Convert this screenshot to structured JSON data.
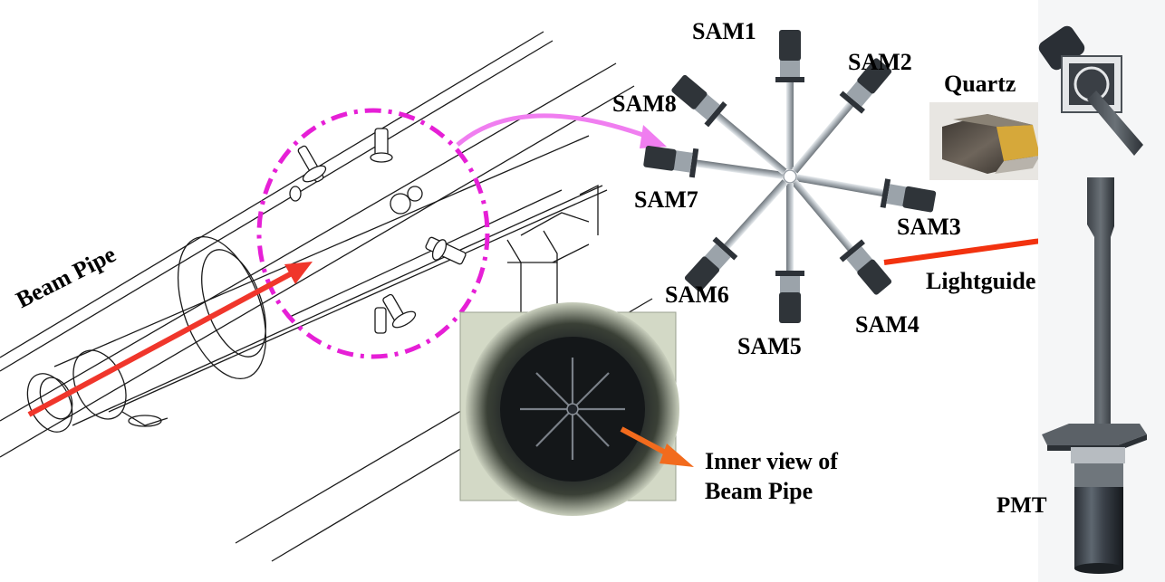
{
  "labels": {
    "beam_pipe": "Beam Pipe",
    "inner_view_line1": "Inner view of",
    "inner_view_line2": "Beam Pipe",
    "quartz": "Quartz",
    "lightguide": "Lightguide",
    "pmt": "PMT",
    "sams": [
      "SAM1",
      "SAM2",
      "SAM3",
      "SAM4",
      "SAM5",
      "SAM6",
      "SAM7",
      "SAM8"
    ]
  },
  "colors": {
    "beam_arrow": "#f0362b",
    "highlight_circle": "#e61fd6",
    "connector_arrow": "#f07ef0",
    "inner_view_arrow": "#f26b1d",
    "lightguide_arrow": "#f2320f",
    "quartz_arrow": "#000000",
    "quartz_gold": "#d6a83a"
  }
}
